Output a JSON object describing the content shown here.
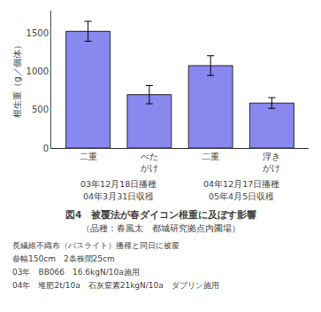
{
  "chart_data": {
    "type": "bar",
    "title": "図4　被覆法が春ダイコン根重に及ぼす影響",
    "subtitle": "（品種：春風太　都城研究拠点内圃場）",
    "categories": [
      "二重",
      "べた\nがけ",
      "二重",
      "浮き\nがけ"
    ],
    "values": [
      1530,
      700,
      1080,
      590
    ],
    "errors": [
      130,
      120,
      130,
      70
    ],
    "color": "#8888ee",
    "ylabel": "根生重（g／個体）",
    "ylim": [
      0,
      1800
    ],
    "yticks": [
      0,
      500,
      1000,
      1500
    ],
    "grid": false,
    "annotations": [
      "03年12月18日播種",
      "04年3月31日収穫",
      "04年12月17日播種",
      "05年4月5日収穫",
      "長繊維不織布（パスライト）播種と同日に被覆",
      "畚幅150cm　2条株間25cm",
      "03年　BB066　16.6kgN/10a施用",
      "04年　堆肥2t/10a　石灰窒素21kgN/10a　ダブリン施用"
    ]
  }
}
